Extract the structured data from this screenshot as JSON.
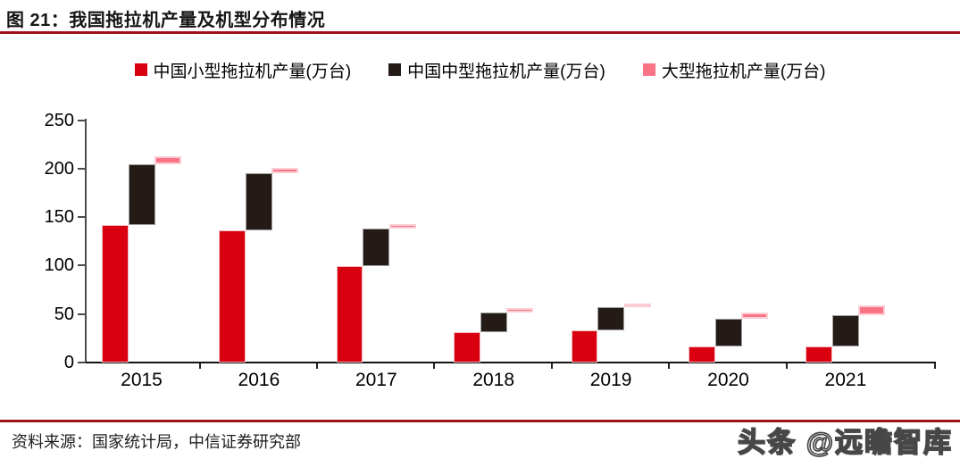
{
  "header": {
    "figure_label": "图 21：我国拖拉机产量及机型分布情况"
  },
  "footer": {
    "source": "资料来源：国家统计局，中信证券研究部",
    "watermark": "头条 @远瞻智库"
  },
  "colors": {
    "rule": "#a0131a",
    "small_bar": "#d9000f",
    "medium_bar": "#241a16",
    "large_bar": "#fa7486"
  },
  "chart_data": {
    "type": "bar",
    "subtype": "waterfall-stacked-offset",
    "title": "我国拖拉机产量及机型分布情况",
    "categories": [
      "2015",
      "2016",
      "2017",
      "2018",
      "2019",
      "2020",
      "2021"
    ],
    "series": [
      {
        "key": "small",
        "name": "中国小型拖拉机产量(万台)",
        "color": "#d9000f",
        "values": [
          142,
          136.5,
          99.5,
          31,
          33,
          16.5,
          17
        ]
      },
      {
        "key": "medium",
        "name": "中国中型拖拉机产量(万台)",
        "color": "#241a16",
        "values": [
          62.5,
          58.5,
          38.5,
          21,
          24,
          29,
          32
        ]
      },
      {
        "key": "large",
        "name": "大型拖拉机产量(万台)",
        "color": "#fa7486",
        "values": [
          8.5,
          6,
          5,
          4,
          4,
          6,
          9.5
        ]
      }
    ],
    "cumulative_totals": [
      213,
      201,
      143,
      56,
      61,
      51.5,
      58.5
    ],
    "unit": "万台",
    "ylim": [
      0,
      250
    ],
    "yticks": [
      0,
      50,
      100,
      150,
      200,
      250
    ],
    "grid": false,
    "legend_position": "top"
  }
}
